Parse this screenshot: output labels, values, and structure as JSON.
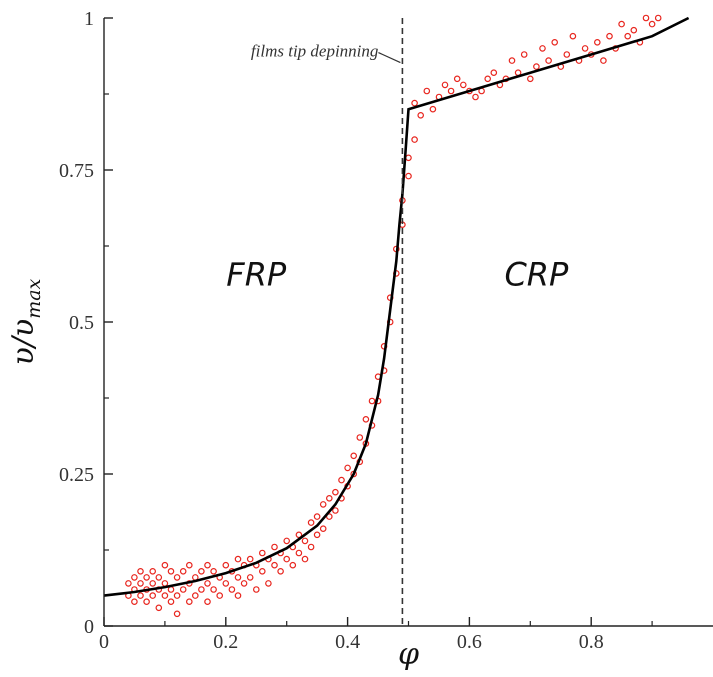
{
  "chart_data": {
    "type": "scatter",
    "xlabel": "φ",
    "ylabel_main": "υ/υ",
    "ylabel_sub": "max",
    "xlim": [
      0,
      1.0
    ],
    "ylim": [
      0,
      1.0
    ],
    "x_ticks": [
      0,
      0.2,
      0.4,
      0.6,
      0.8
    ],
    "x_tick_labels": [
      "0",
      "0.2",
      "0.4",
      "0.6",
      "0.8"
    ],
    "y_ticks": [
      0,
      0.25,
      0.5,
      0.75,
      1
    ],
    "y_tick_labels": [
      "0",
      "0.25",
      "0.5",
      "0.75",
      "1"
    ],
    "grid": false,
    "region_labels": [
      {
        "text": "FRP",
        "x": 0.25,
        "y": 0.56
      },
      {
        "text": "CRP",
        "x": 0.71,
        "y": 0.56
      }
    ],
    "annotation": {
      "text": "films tip depinning",
      "x": 0.49,
      "y": 0.93
    },
    "vertical_line_x": 0.49,
    "fit_curve": [
      [
        0,
        0.05
      ],
      [
        0.05,
        0.056
      ],
      [
        0.1,
        0.064
      ],
      [
        0.15,
        0.074
      ],
      [
        0.2,
        0.087
      ],
      [
        0.25,
        0.104
      ],
      [
        0.3,
        0.128
      ],
      [
        0.35,
        0.165
      ],
      [
        0.38,
        0.2
      ],
      [
        0.41,
        0.25
      ],
      [
        0.43,
        0.3
      ],
      [
        0.45,
        0.38
      ],
      [
        0.46,
        0.44
      ],
      [
        0.47,
        0.52
      ],
      [
        0.48,
        0.6
      ],
      [
        0.485,
        0.66
      ],
      [
        0.49,
        0.71
      ],
      [
        0.495,
        0.78
      ],
      [
        0.5,
        0.85
      ],
      [
        0.6,
        0.88
      ],
      [
        0.7,
        0.91
      ],
      [
        0.8,
        0.94
      ],
      [
        0.9,
        0.97
      ],
      [
        0.96,
        1.0
      ]
    ],
    "points": [
      [
        0.04,
        0.05
      ],
      [
        0.04,
        0.07
      ],
      [
        0.05,
        0.04
      ],
      [
        0.05,
        0.06
      ],
      [
        0.05,
        0.08
      ],
      [
        0.06,
        0.05
      ],
      [
        0.06,
        0.07
      ],
      [
        0.06,
        0.09
      ],
      [
        0.07,
        0.04
      ],
      [
        0.07,
        0.06
      ],
      [
        0.07,
        0.08
      ],
      [
        0.08,
        0.05
      ],
      [
        0.08,
        0.07
      ],
      [
        0.08,
        0.09
      ],
      [
        0.09,
        0.03
      ],
      [
        0.09,
        0.06
      ],
      [
        0.09,
        0.08
      ],
      [
        0.1,
        0.05
      ],
      [
        0.1,
        0.07
      ],
      [
        0.1,
        0.1
      ],
      [
        0.11,
        0.04
      ],
      [
        0.11,
        0.06
      ],
      [
        0.11,
        0.09
      ],
      [
        0.12,
        0.02
      ],
      [
        0.12,
        0.05
      ],
      [
        0.12,
        0.08
      ],
      [
        0.13,
        0.06
      ],
      [
        0.13,
        0.09
      ],
      [
        0.14,
        0.04
      ],
      [
        0.14,
        0.07
      ],
      [
        0.14,
        0.1
      ],
      [
        0.15,
        0.05
      ],
      [
        0.15,
        0.08
      ],
      [
        0.16,
        0.06
      ],
      [
        0.16,
        0.09
      ],
      [
        0.17,
        0.04
      ],
      [
        0.17,
        0.07
      ],
      [
        0.17,
        0.1
      ],
      [
        0.18,
        0.06
      ],
      [
        0.18,
        0.09
      ],
      [
        0.19,
        0.05
      ],
      [
        0.19,
        0.08
      ],
      [
        0.2,
        0.07
      ],
      [
        0.2,
        0.1
      ],
      [
        0.21,
        0.06
      ],
      [
        0.21,
        0.09
      ],
      [
        0.22,
        0.05
      ],
      [
        0.22,
        0.08
      ],
      [
        0.22,
        0.11
      ],
      [
        0.23,
        0.07
      ],
      [
        0.23,
        0.1
      ],
      [
        0.24,
        0.08
      ],
      [
        0.24,
        0.11
      ],
      [
        0.25,
        0.06
      ],
      [
        0.25,
        0.1
      ],
      [
        0.26,
        0.09
      ],
      [
        0.26,
        0.12
      ],
      [
        0.27,
        0.07
      ],
      [
        0.27,
        0.11
      ],
      [
        0.28,
        0.1
      ],
      [
        0.28,
        0.13
      ],
      [
        0.29,
        0.09
      ],
      [
        0.29,
        0.12
      ],
      [
        0.3,
        0.11
      ],
      [
        0.3,
        0.14
      ],
      [
        0.31,
        0.1
      ],
      [
        0.31,
        0.13
      ],
      [
        0.32,
        0.12
      ],
      [
        0.32,
        0.15
      ],
      [
        0.33,
        0.11
      ],
      [
        0.33,
        0.14
      ],
      [
        0.34,
        0.13
      ],
      [
        0.34,
        0.17
      ],
      [
        0.35,
        0.15
      ],
      [
        0.35,
        0.18
      ],
      [
        0.36,
        0.16
      ],
      [
        0.36,
        0.2
      ],
      [
        0.37,
        0.18
      ],
      [
        0.37,
        0.21
      ],
      [
        0.38,
        0.19
      ],
      [
        0.38,
        0.22
      ],
      [
        0.39,
        0.21
      ],
      [
        0.39,
        0.24
      ],
      [
        0.4,
        0.23
      ],
      [
        0.4,
        0.26
      ],
      [
        0.41,
        0.25
      ],
      [
        0.41,
        0.28
      ],
      [
        0.42,
        0.27
      ],
      [
        0.42,
        0.31
      ],
      [
        0.43,
        0.3
      ],
      [
        0.43,
        0.34
      ],
      [
        0.44,
        0.33
      ],
      [
        0.44,
        0.37
      ],
      [
        0.45,
        0.37
      ],
      [
        0.45,
        0.41
      ],
      [
        0.46,
        0.42
      ],
      [
        0.46,
        0.46
      ],
      [
        0.47,
        0.5
      ],
      [
        0.47,
        0.54
      ],
      [
        0.48,
        0.58
      ],
      [
        0.48,
        0.62
      ],
      [
        0.49,
        0.66
      ],
      [
        0.49,
        0.7
      ],
      [
        0.5,
        0.74
      ],
      [
        0.5,
        0.77
      ],
      [
        0.51,
        0.8
      ],
      [
        0.51,
        0.86
      ],
      [
        0.52,
        0.84
      ],
      [
        0.53,
        0.88
      ],
      [
        0.54,
        0.85
      ],
      [
        0.55,
        0.87
      ],
      [
        0.56,
        0.89
      ],
      [
        0.57,
        0.88
      ],
      [
        0.58,
        0.9
      ],
      [
        0.59,
        0.89
      ],
      [
        0.6,
        0.88
      ],
      [
        0.61,
        0.87
      ],
      [
        0.62,
        0.88
      ],
      [
        0.63,
        0.9
      ],
      [
        0.64,
        0.91
      ],
      [
        0.65,
        0.89
      ],
      [
        0.66,
        0.9
      ],
      [
        0.67,
        0.93
      ],
      [
        0.68,
        0.91
      ],
      [
        0.69,
        0.94
      ],
      [
        0.7,
        0.9
      ],
      [
        0.71,
        0.92
      ],
      [
        0.72,
        0.95
      ],
      [
        0.73,
        0.93
      ],
      [
        0.74,
        0.96
      ],
      [
        0.75,
        0.92
      ],
      [
        0.76,
        0.94
      ],
      [
        0.77,
        0.97
      ],
      [
        0.78,
        0.93
      ],
      [
        0.79,
        0.95
      ],
      [
        0.8,
        0.94
      ],
      [
        0.81,
        0.96
      ],
      [
        0.82,
        0.93
      ],
      [
        0.83,
        0.97
      ],
      [
        0.84,
        0.95
      ],
      [
        0.85,
        0.99
      ],
      [
        0.86,
        0.97
      ],
      [
        0.87,
        0.98
      ],
      [
        0.88,
        0.96
      ],
      [
        0.89,
        1.0
      ],
      [
        0.9,
        0.99
      ],
      [
        0.91,
        1.0
      ]
    ]
  },
  "colors": {
    "points": "#e8261f",
    "fit_line": "#000000",
    "axis": "#222222"
  }
}
